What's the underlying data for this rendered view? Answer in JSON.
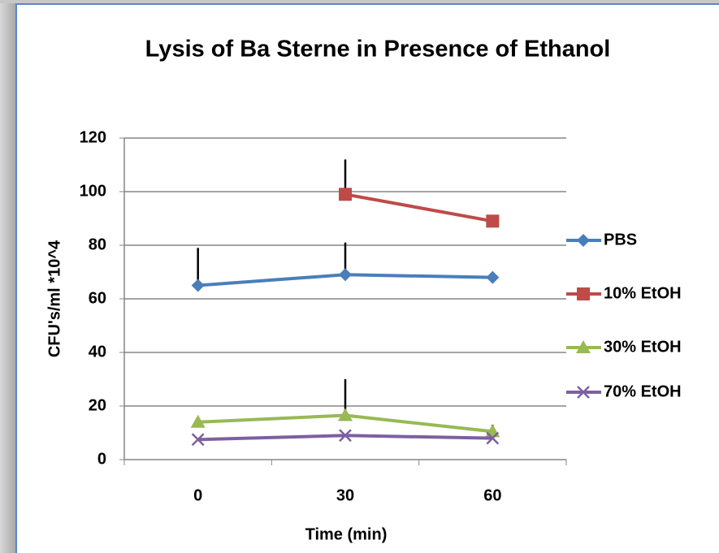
{
  "chart_data": {
    "type": "line",
    "title": "Lysis of Ba Sterne in Presence of Ethanol",
    "x_label": "Time (min)",
    "y_label": "CFU's/ml *10^4",
    "categories": [
      "0",
      "30",
      "60"
    ],
    "series": [
      {
        "name": "PBS",
        "color": "#4a7ebb",
        "marker": "diamond",
        "values": [
          65,
          69,
          68
        ],
        "errors": [
          14,
          12,
          null
        ]
      },
      {
        "name": "10% EtOH",
        "color": "#be4b48",
        "marker": "square",
        "values": [
          null,
          99,
          89
        ],
        "errors": [
          null,
          13,
          null
        ]
      },
      {
        "name": "30% EtOH",
        "color": "#98b954",
        "marker": "triangle",
        "values": [
          14,
          16.5,
          10.5
        ],
        "errors": [
          null,
          13.5,
          2.5
        ]
      },
      {
        "name": "70% EtOH",
        "color": "#7d60a0",
        "marker": "x",
        "values": [
          7.5,
          9,
          8
        ],
        "errors": [
          null,
          null,
          null
        ]
      }
    ],
    "ylim": [
      0,
      120
    ],
    "yticks": [
      0,
      20,
      40,
      60,
      80,
      100,
      120
    ],
    "grid": true,
    "legend": "right"
  }
}
